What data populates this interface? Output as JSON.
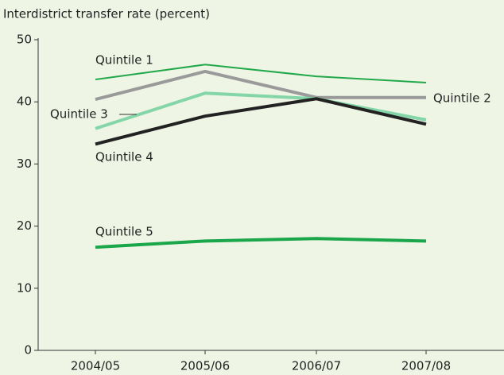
{
  "chart_data": {
    "type": "line",
    "ylabel": "Interdistrict transfer rate (percent)",
    "categories": [
      "2004/05",
      "2005/06",
      "2006/07",
      "2007/08"
    ],
    "series": [
      {
        "name": "Quintile 1",
        "color": "#22a84a",
        "values": [
          43.6,
          46.0,
          44.1,
          43.1
        ]
      },
      {
        "name": "Quintile 2",
        "color": "#9a9a9a",
        "values": [
          40.4,
          44.9,
          40.7,
          40.7
        ]
      },
      {
        "name": "Quintile 3",
        "color": "#84d6a8",
        "values": [
          35.7,
          41.4,
          40.5,
          37.1
        ]
      },
      {
        "name": "Quintile 4",
        "color": "#222222",
        "values": [
          33.2,
          37.7,
          40.5,
          36.4
        ]
      },
      {
        "name": "Quintile 5",
        "color": "#1aa64a",
        "values": [
          16.6,
          17.6,
          18.0,
          17.6
        ]
      }
    ],
    "ylim": [
      0,
      50
    ],
    "yticks": [
      0,
      10,
      20,
      30,
      40,
      50
    ]
  }
}
